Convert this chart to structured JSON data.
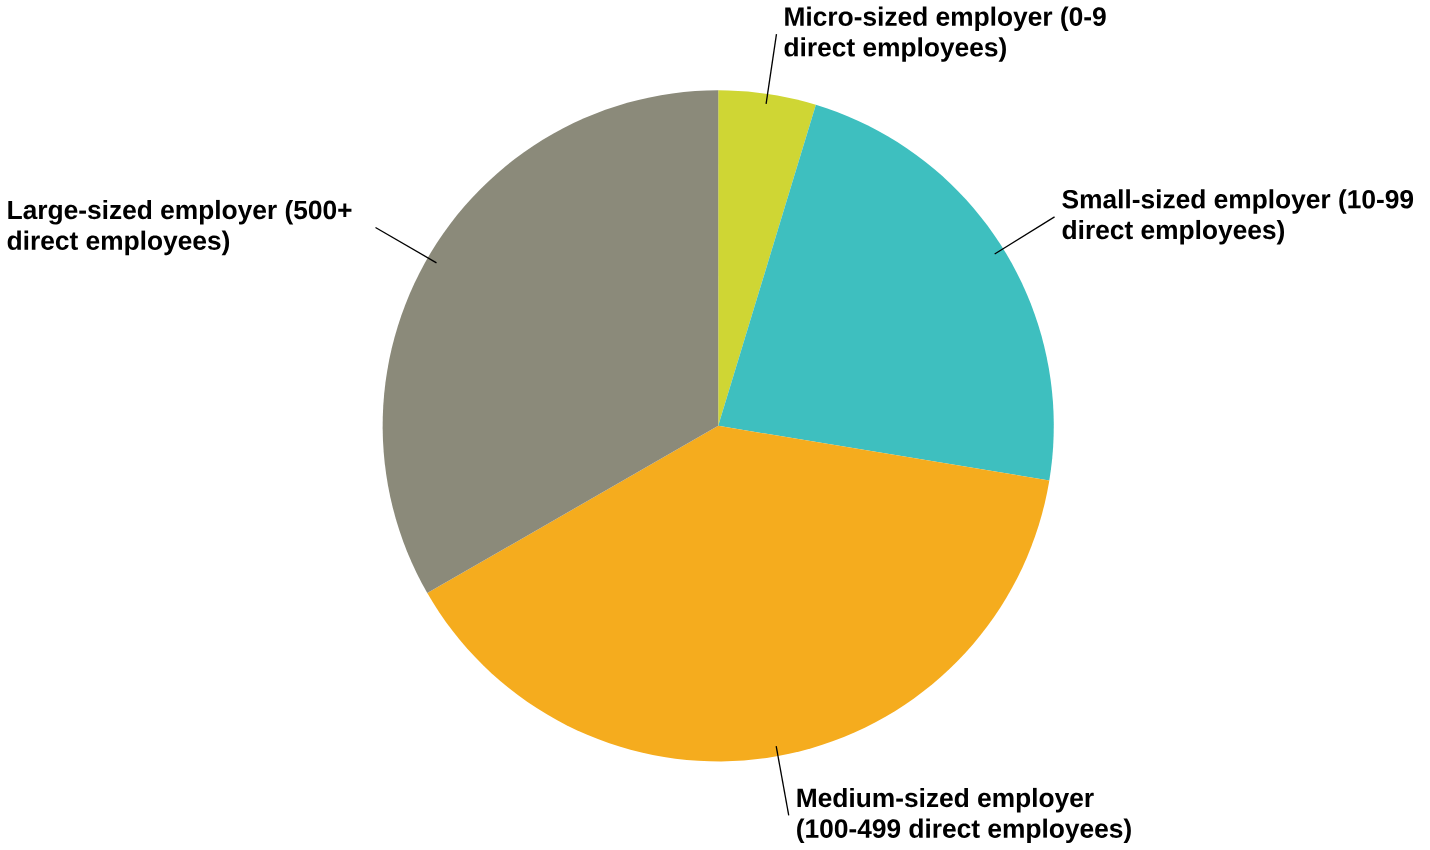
{
  "chart_data": {
    "type": "pie",
    "categories": [
      "Micro-sized employer (0-9 direct employees)",
      "Small-sized employer (10-99 direct employees)",
      "Medium-sized employer (100-499 direct employees)",
      "Large-sized employer (500+ direct employees)"
    ],
    "values": [
      4.7,
      22.9,
      39.1,
      33.3
    ],
    "colors": [
      "#cfd634",
      "#3ebfbf",
      "#f5ac1e",
      "#8b8a7a"
    ]
  }
}
